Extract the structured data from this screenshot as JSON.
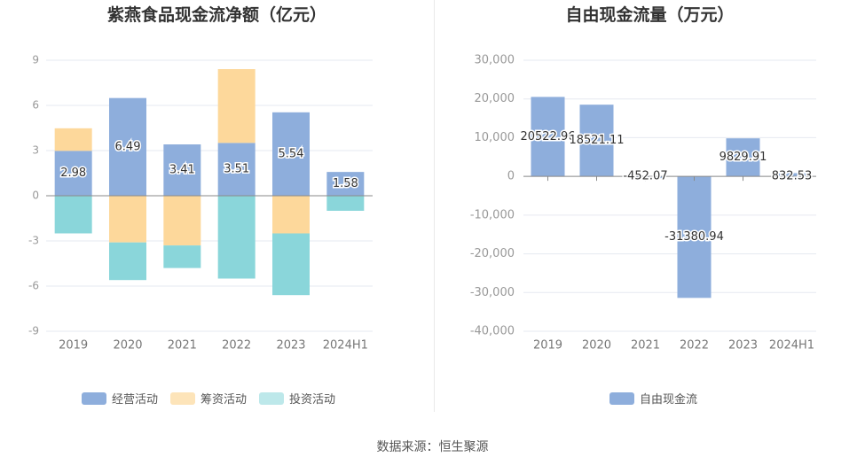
{
  "source": "数据来源：恒生聚源",
  "chart_data": [
    {
      "type": "bar",
      "stacked": true,
      "title": "紫燕食品现金流净额（亿元）",
      "categories": [
        "2019",
        "2020",
        "2021",
        "2022",
        "2023",
        "2024H1"
      ],
      "ylim": [
        -9,
        9
      ],
      "yticks": [
        "9",
        "6",
        "3",
        "0",
        "-3",
        "-6",
        "-9"
      ],
      "ytick_values": [
        9,
        6,
        3,
        0,
        -3,
        -6,
        -9
      ],
      "grid": true,
      "legend_position": "bottom",
      "series": [
        {
          "name": "经营活动",
          "color": "#8eaedc",
          "values": [
            2.98,
            6.49,
            3.41,
            3.51,
            5.54,
            1.58
          ],
          "labels": [
            "2.98",
            "6.49",
            "3.41",
            "3.51",
            "5.54",
            "1.58"
          ]
        },
        {
          "name": "筹资活动",
          "color": "#fdd89b",
          "values": [
            1.5,
            -3.1,
            -3.3,
            4.9,
            -2.5,
            0
          ]
        },
        {
          "name": "投资活动",
          "color": "#8ad6da",
          "values": [
            -2.5,
            -2.5,
            -1.5,
            -5.5,
            -4.1,
            -1.0
          ]
        }
      ]
    },
    {
      "type": "bar",
      "title": "自由现金流量（万元）",
      "categories": [
        "2019",
        "2020",
        "2021",
        "2022",
        "2023",
        "2024H1"
      ],
      "ylim": [
        -40000,
        30000
      ],
      "yticks": [
        "30,000",
        "20,000",
        "10,000",
        "0",
        "-10,000",
        "-20,000",
        "-30,000",
        "-40,000"
      ],
      "ytick_values": [
        30000,
        20000,
        10000,
        0,
        -10000,
        -20000,
        -30000,
        -40000
      ],
      "grid": true,
      "legend_position": "bottom",
      "series": [
        {
          "name": "自由现金流",
          "color": "#8eaedc",
          "values": [
            20522.96,
            18521.11,
            -452.07,
            -31380.94,
            9829.91,
            832.53
          ],
          "labels": [
            "20522.96",
            "18521.11",
            "-452.07",
            "-31380.94",
            "9829.91",
            "832.53"
          ]
        }
      ]
    }
  ]
}
